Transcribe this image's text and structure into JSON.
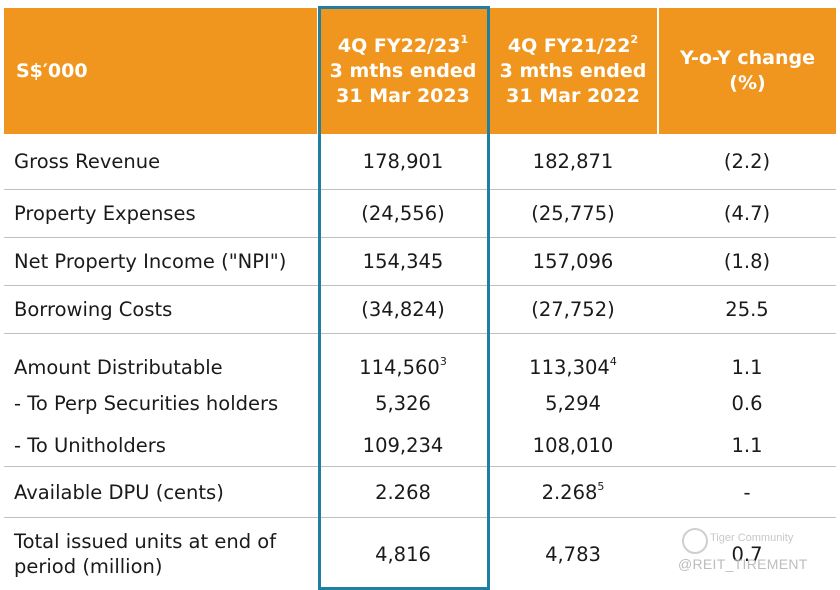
{
  "header": {
    "label": "S$′000",
    "col1": {
      "line1": "4Q FY22/23",
      "sup": "1",
      "line2": "3 mths ended",
      "line3": "31 Mar 2023"
    },
    "col2": {
      "line1": "4Q FY21/22",
      "sup": "2",
      "line2": "3 mths ended",
      "line3": "31 Mar 2022"
    },
    "col3": {
      "line1": "Y-o-Y change",
      "line2": "(%)"
    }
  },
  "rows": [
    {
      "label": "Gross Revenue",
      "fy23": "178,901",
      "fy22": "182,871",
      "yoy": "(2.2)"
    },
    {
      "label": "Property Expenses",
      "fy23": "(24,556)",
      "fy22": "(25,775)",
      "yoy": "(4.7)"
    },
    {
      "label": "Net Property Income (\"NPI\")",
      "fy23": "154,345",
      "fy22": "157,096",
      "yoy": "(1.8)"
    },
    {
      "label": "Borrowing Costs",
      "fy23": "(34,824)",
      "fy22": "(27,752)",
      "yoy": "25.5"
    },
    {
      "label": "Amount Distributable",
      "fy23": "114,560",
      "fy23_sup": "3",
      "fy22": "113,304",
      "fy22_sup": "4",
      "yoy": "1.1"
    },
    {
      "label": "- To Perp Securities holders",
      "fy23": "5,326",
      "fy22": "5,294",
      "yoy": "0.6"
    },
    {
      "label": "- To Unitholders",
      "fy23": "109,234",
      "fy22": "108,010",
      "yoy": "1.1"
    },
    {
      "label": "Available DPU (cents)",
      "fy23": "2.268",
      "fy22": "2.268",
      "fy22_sup": "5",
      "yoy": "-"
    },
    {
      "label_line1": "Total issued units at end of",
      "label_line2": "period (million)",
      "fy23": "4,816",
      "fy22": "4,783",
      "yoy": "0.7"
    }
  ],
  "watermark": {
    "brand": "Tiger Community",
    "handle": "@REIT_TIREMENT"
  },
  "colors": {
    "header_bg": "#f0961e",
    "highlight_border": "#1f7ea1"
  }
}
